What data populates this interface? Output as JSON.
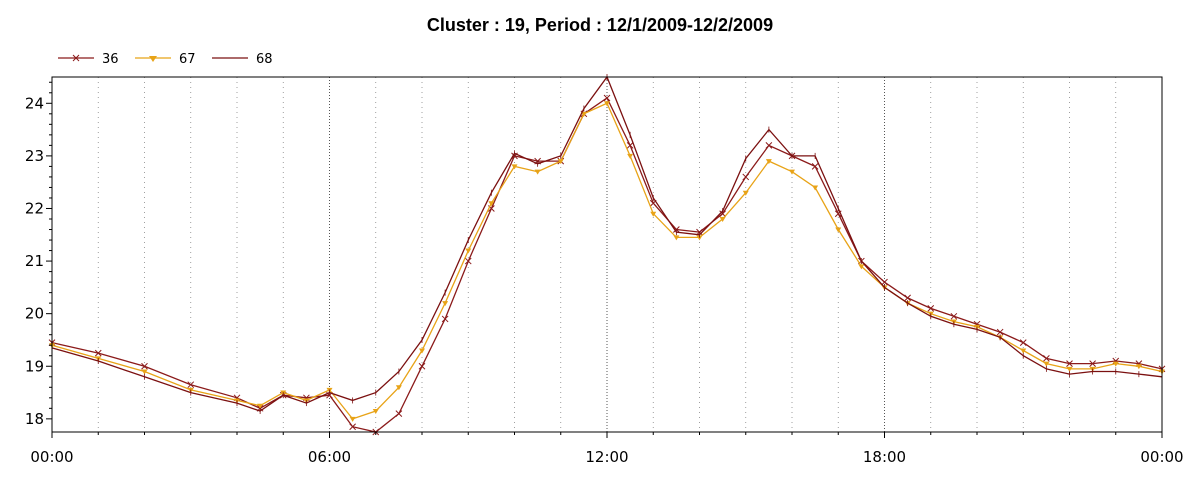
{
  "chart_data": {
    "type": "line",
    "title": "Cluster : 19, Period : 12/1/2009-12/2/2009",
    "xlabel": "",
    "ylabel": "",
    "x_ticks": [
      "00:00",
      "06:00",
      "12:00",
      "18:00",
      "00:00"
    ],
    "y_ticks": [
      18,
      19,
      20,
      21,
      22,
      23,
      24
    ],
    "xlim": [
      "00:00",
      "24:00"
    ],
    "ylim": [
      17.75,
      24.5
    ],
    "grid": "dotted vertical lines every hour, heavier at 06:00, 12:00, 18:00",
    "legend": "top-left",
    "series": [
      {
        "name": "36",
        "color": "#8b1a1a",
        "marker": "x",
        "points": [
          [
            "00:00",
            19.45
          ],
          [
            "01:00",
            19.25
          ],
          [
            "02:00",
            19.0
          ],
          [
            "03:00",
            18.65
          ],
          [
            "04:00",
            18.4
          ],
          [
            "04:30",
            18.2
          ],
          [
            "05:00",
            18.45
          ],
          [
            "05:30",
            18.4
          ],
          [
            "06:00",
            18.45
          ],
          [
            "06:30",
            17.85
          ],
          [
            "07:00",
            17.75
          ],
          [
            "07:30",
            18.1
          ],
          [
            "08:00",
            19.0
          ],
          [
            "08:30",
            19.9
          ],
          [
            "09:00",
            21.0
          ],
          [
            "09:30",
            22.0
          ],
          [
            "10:00",
            23.0
          ],
          [
            "10:30",
            22.9
          ],
          [
            "11:00",
            22.9
          ],
          [
            "11:30",
            23.8
          ],
          [
            "12:00",
            24.1
          ],
          [
            "12:30",
            23.2
          ],
          [
            "13:00",
            22.1
          ],
          [
            "13:30",
            21.6
          ],
          [
            "14:00",
            21.55
          ],
          [
            "14:30",
            21.9
          ],
          [
            "15:00",
            22.6
          ],
          [
            "15:30",
            23.2
          ],
          [
            "16:00",
            23.0
          ],
          [
            "16:30",
            22.8
          ],
          [
            "17:00",
            21.9
          ],
          [
            "17:30",
            21.0
          ],
          [
            "18:00",
            20.6
          ],
          [
            "18:30",
            20.3
          ],
          [
            "19:00",
            20.1
          ],
          [
            "19:30",
            19.95
          ],
          [
            "20:00",
            19.8
          ],
          [
            "20:30",
            19.65
          ],
          [
            "21:00",
            19.45
          ],
          [
            "21:30",
            19.15
          ],
          [
            "22:00",
            19.05
          ],
          [
            "22:30",
            19.05
          ],
          [
            "23:00",
            19.1
          ],
          [
            "23:30",
            19.05
          ],
          [
            "24:00",
            18.95
          ]
        ]
      },
      {
        "name": "67",
        "color": "#e8a317",
        "marker": "triangle",
        "points": [
          [
            "00:00",
            19.4
          ],
          [
            "01:00",
            19.15
          ],
          [
            "02:00",
            18.9
          ],
          [
            "03:00",
            18.55
          ],
          [
            "04:00",
            18.35
          ],
          [
            "04:30",
            18.25
          ],
          [
            "05:00",
            18.5
          ],
          [
            "05:30",
            18.35
          ],
          [
            "06:00",
            18.55
          ],
          [
            "06:30",
            18.0
          ],
          [
            "07:00",
            18.15
          ],
          [
            "07:30",
            18.6
          ],
          [
            "08:00",
            19.3
          ],
          [
            "08:30",
            20.2
          ],
          [
            "09:00",
            21.2
          ],
          [
            "09:30",
            22.1
          ],
          [
            "10:00",
            22.8
          ],
          [
            "10:30",
            22.7
          ],
          [
            "11:00",
            22.9
          ],
          [
            "11:30",
            23.8
          ],
          [
            "12:00",
            24.0
          ],
          [
            "12:30",
            23.0
          ],
          [
            "13:00",
            21.9
          ],
          [
            "13:30",
            21.45
          ],
          [
            "14:00",
            21.45
          ],
          [
            "14:30",
            21.8
          ],
          [
            "15:00",
            22.3
          ],
          [
            "15:30",
            22.9
          ],
          [
            "16:00",
            22.7
          ],
          [
            "16:30",
            22.4
          ],
          [
            "17:00",
            21.6
          ],
          [
            "17:30",
            20.9
          ],
          [
            "18:00",
            20.5
          ],
          [
            "18:30",
            20.2
          ],
          [
            "19:00",
            20.0
          ],
          [
            "19:30",
            19.85
          ],
          [
            "20:00",
            19.75
          ],
          [
            "20:30",
            19.55
          ],
          [
            "21:00",
            19.3
          ],
          [
            "21:30",
            19.05
          ],
          [
            "22:00",
            18.95
          ],
          [
            "22:30",
            18.95
          ],
          [
            "23:00",
            19.05
          ],
          [
            "23:30",
            19.0
          ],
          [
            "24:00",
            18.9
          ]
        ]
      },
      {
        "name": "68",
        "color": "#7b1010",
        "marker": "none",
        "points": [
          [
            "00:00",
            19.35
          ],
          [
            "01:00",
            19.1
          ],
          [
            "02:00",
            18.8
          ],
          [
            "03:00",
            18.5
          ],
          [
            "04:00",
            18.3
          ],
          [
            "04:30",
            18.15
          ],
          [
            "05:00",
            18.45
          ],
          [
            "05:30",
            18.3
          ],
          [
            "06:00",
            18.5
          ],
          [
            "06:30",
            18.35
          ],
          [
            "07:00",
            18.5
          ],
          [
            "07:30",
            18.9
          ],
          [
            "08:00",
            19.5
          ],
          [
            "08:30",
            20.4
          ],
          [
            "09:00",
            21.4
          ],
          [
            "09:30",
            22.3
          ],
          [
            "10:00",
            23.05
          ],
          [
            "10:30",
            22.85
          ],
          [
            "11:00",
            23.0
          ],
          [
            "11:30",
            23.9
          ],
          [
            "12:00",
            24.5
          ],
          [
            "12:30",
            23.4
          ],
          [
            "13:00",
            22.2
          ],
          [
            "13:30",
            21.55
          ],
          [
            "14:00",
            21.5
          ],
          [
            "14:30",
            21.95
          ],
          [
            "15:00",
            22.95
          ],
          [
            "15:30",
            23.5
          ],
          [
            "16:00",
            23.0
          ],
          [
            "16:30",
            23.0
          ],
          [
            "17:00",
            22.0
          ],
          [
            "17:30",
            21.0
          ],
          [
            "18:00",
            20.5
          ],
          [
            "18:30",
            20.2
          ],
          [
            "19:00",
            19.95
          ],
          [
            "19:30",
            19.8
          ],
          [
            "20:00",
            19.7
          ],
          [
            "20:30",
            19.55
          ],
          [
            "21:00",
            19.2
          ],
          [
            "21:30",
            18.95
          ],
          [
            "22:00",
            18.85
          ],
          [
            "22:30",
            18.9
          ],
          [
            "23:00",
            18.9
          ],
          [
            "23:30",
            18.85
          ],
          [
            "24:00",
            18.8
          ]
        ]
      }
    ]
  }
}
